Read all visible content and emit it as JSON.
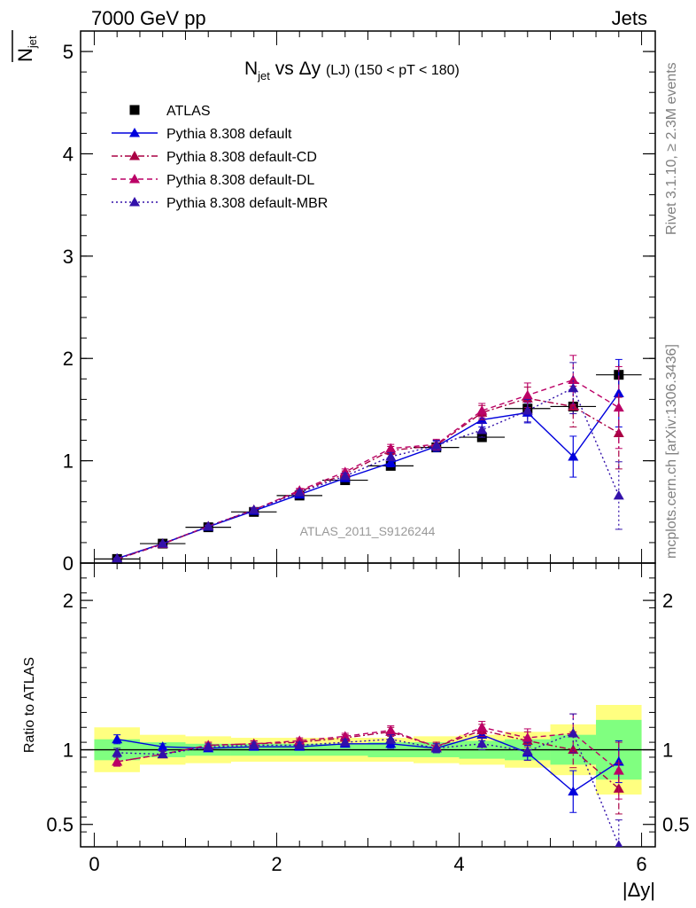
{
  "header": {
    "left": "7000 GeV pp",
    "right": "Jets"
  },
  "side_labels": {
    "rivet": "Rivet 3.1.10, ≥ 2.3M events",
    "mcplots": "mcplots.cern.ch [arXiv:1306.3436]"
  },
  "watermark": "ATLAS_2011_S9126244",
  "colors": {
    "atlas": "#000000",
    "default": "#0000dd",
    "cd": "#aa0044",
    "dl": "#bb0066",
    "mbr": "#3311aa",
    "band_green": "#80ff80",
    "band_yellow": "#ffff80"
  },
  "chart_data": [
    {
      "type": "scatter",
      "title_parts": {
        "main": "N",
        "sub": "jet",
        "mid": " vs Δy ",
        "lj": "(LJ)",
        "range": " (150 < pT < 180)"
      },
      "ylabel_parts": {
        "n": "N",
        "sub": "jet"
      },
      "xlim": [
        -0.15,
        6.15
      ],
      "ylim": [
        0,
        5.2
      ],
      "yticks": [
        0,
        1,
        2,
        3,
        4,
        5
      ],
      "ytick_labels": [
        "0",
        "1",
        "2",
        "3",
        "4",
        "5"
      ],
      "legend_position": "top-left",
      "x": [
        0.25,
        0.75,
        1.25,
        1.75,
        2.25,
        2.75,
        3.25,
        3.75,
        4.25,
        4.75,
        5.25,
        5.75
      ],
      "x_half_width": 0.25,
      "series": [
        {
          "key": "atlas",
          "name": "ATLAS",
          "style": "data",
          "values": [
            0.04,
            0.19,
            0.35,
            0.5,
            0.66,
            0.81,
            0.95,
            1.13,
            1.23,
            1.51,
            1.53,
            1.84
          ],
          "errors": [
            0.005,
            0.01,
            0.01,
            0.02,
            0.02,
            0.02,
            0.03,
            0.04,
            0.04,
            0.05,
            0.08,
            0.1
          ]
        },
        {
          "key": "default",
          "name": "Pythia 8.308 default",
          "style": "solid",
          "values": [
            0.045,
            0.19,
            0.355,
            0.51,
            0.67,
            0.83,
            0.98,
            1.14,
            1.4,
            1.47,
            1.04,
            1.66
          ],
          "errors": [
            0.005,
            0.01,
            0.01,
            0.02,
            0.02,
            0.03,
            0.04,
            0.05,
            0.07,
            0.1,
            0.2,
            0.33
          ]
        },
        {
          "key": "cd",
          "name": "Pythia 8.308 default-CD",
          "style": "dashdot",
          "values": [
            0.038,
            0.185,
            0.36,
            0.52,
            0.7,
            0.87,
            1.1,
            1.15,
            1.47,
            1.61,
            1.53,
            1.27
          ],
          "errors": [
            0.005,
            0.01,
            0.01,
            0.02,
            0.02,
            0.03,
            0.04,
            0.05,
            0.07,
            0.11,
            0.2,
            0.35
          ]
        },
        {
          "key": "dl",
          "name": "Pythia 8.308 default-DL",
          "style": "dashed",
          "values": [
            0.042,
            0.19,
            0.36,
            0.52,
            0.71,
            0.89,
            1.12,
            1.16,
            1.49,
            1.64,
            1.79,
            1.52
          ],
          "errors": [
            0.005,
            0.01,
            0.01,
            0.02,
            0.02,
            0.03,
            0.04,
            0.05,
            0.07,
            0.12,
            0.24,
            0.4
          ]
        },
        {
          "key": "mbr",
          "name": "Pythia 8.308 default-MBR",
          "style": "dotted",
          "values": [
            0.042,
            0.19,
            0.36,
            0.52,
            0.69,
            0.85,
            1.04,
            1.15,
            1.3,
            1.49,
            1.71,
            0.66
          ],
          "errors": [
            0.005,
            0.01,
            0.01,
            0.02,
            0.02,
            0.03,
            0.04,
            0.05,
            0.07,
            0.11,
            0.25,
            0.33
          ]
        }
      ]
    },
    {
      "type": "scatter",
      "ylabel": "Ratio to ATLAS",
      "xlabel": "|Δy|",
      "xlim": [
        -0.15,
        6.15
      ],
      "ylim": [
        0.35,
        2.25
      ],
      "xticks": [
        0,
        2,
        4,
        6
      ],
      "xtick_labels": [
        "0",
        "2",
        "4",
        "6"
      ],
      "yticks": [
        0.5,
        1,
        2
      ],
      "ytick_labels": [
        "0.5",
        "1",
        "2"
      ],
      "reference_line": 1,
      "band_green": [
        0.07,
        0.05,
        0.04,
        0.04,
        0.04,
        0.04,
        0.05,
        0.05,
        0.06,
        0.07,
        0.1,
        0.2
      ],
      "band_yellow": [
        0.15,
        0.1,
        0.09,
        0.08,
        0.08,
        0.08,
        0.08,
        0.09,
        0.1,
        0.12,
        0.17,
        0.3
      ],
      "x": [
        0.25,
        0.75,
        1.25,
        1.75,
        2.25,
        2.75,
        3.25,
        3.75,
        4.25,
        4.75,
        5.25,
        5.75
      ],
      "series": [
        {
          "key": "default",
          "values": [
            1.07,
            1.02,
            1.01,
            1.02,
            1.02,
            1.04,
            1.04,
            1.01,
            1.1,
            0.98,
            0.72,
            0.92
          ],
          "errors": [
            0.03,
            0.02,
            0.02,
            0.02,
            0.02,
            0.02,
            0.03,
            0.03,
            0.04,
            0.05,
            0.14,
            0.14
          ]
        },
        {
          "key": "cd",
          "values": [
            0.92,
            0.97,
            1.03,
            1.04,
            1.05,
            1.08,
            1.12,
            1.02,
            1.13,
            1.06,
            1.0,
            0.74
          ],
          "errors": [
            0.03,
            0.02,
            0.02,
            0.02,
            0.02,
            0.02,
            0.03,
            0.03,
            0.04,
            0.06,
            0.12,
            0.17
          ]
        },
        {
          "key": "dl",
          "values": [
            0.92,
            0.97,
            1.03,
            1.04,
            1.06,
            1.09,
            1.13,
            1.02,
            1.15,
            1.08,
            1.11,
            0.86
          ],
          "errors": [
            0.03,
            0.02,
            0.02,
            0.02,
            0.02,
            0.02,
            0.03,
            0.03,
            0.04,
            0.06,
            0.13,
            0.19
          ]
        },
        {
          "key": "mbr",
          "values": [
            0.98,
            0.97,
            1.02,
            1.03,
            1.03,
            1.05,
            1.07,
            1.01,
            1.04,
            0.99,
            1.11,
            0.36
          ],
          "errors": [
            0.03,
            0.02,
            0.02,
            0.02,
            0.02,
            0.02,
            0.03,
            0.03,
            0.04,
            0.06,
            0.13,
            0.17
          ]
        }
      ]
    }
  ]
}
